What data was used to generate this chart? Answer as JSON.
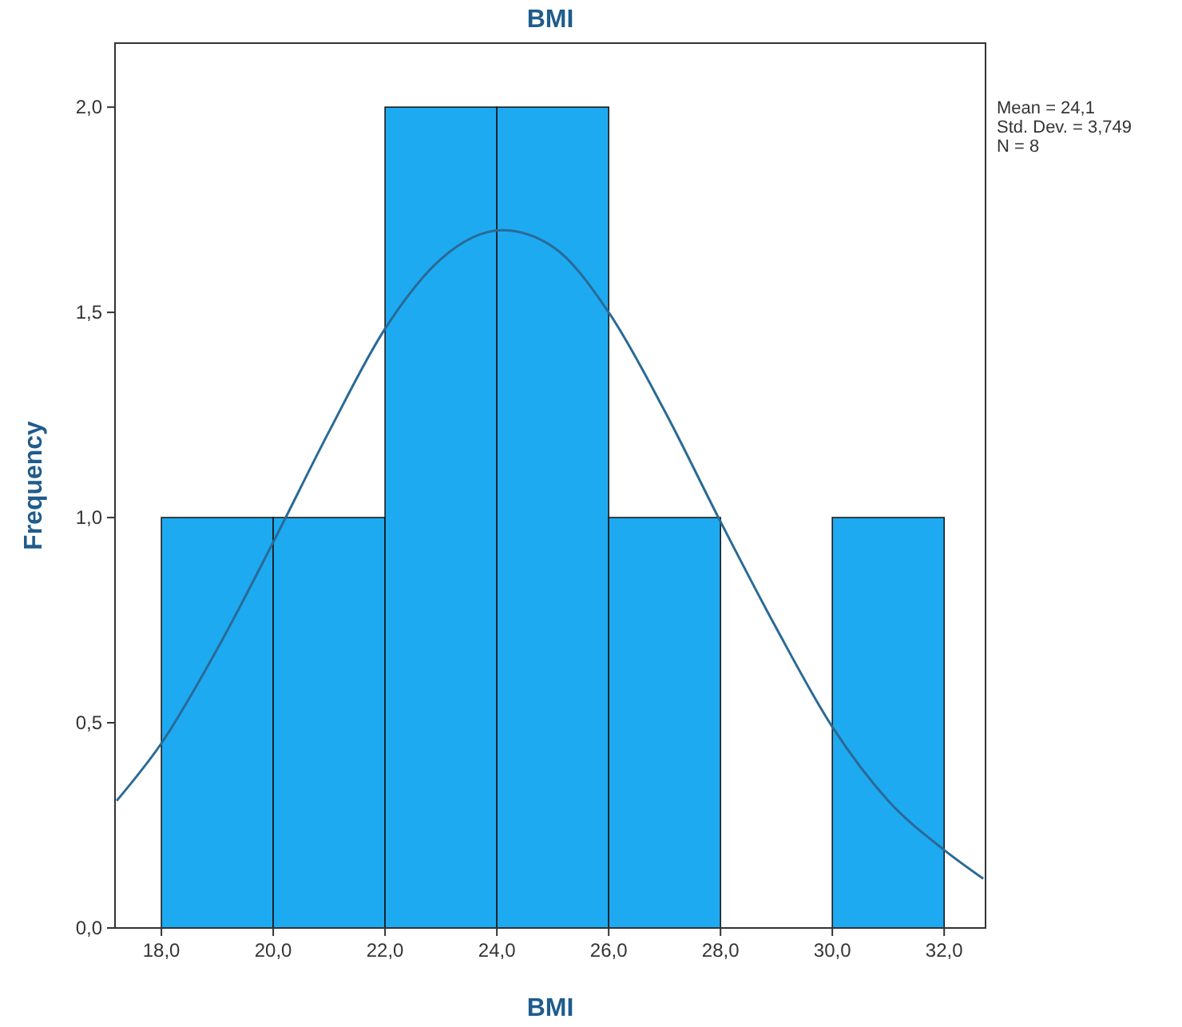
{
  "chart_data": {
    "type": "histogram",
    "title": "BMI",
    "xlabel": "BMI",
    "ylabel": "Frequency",
    "bins": [
      18,
      20,
      22,
      24,
      26,
      28,
      30,
      32
    ],
    "series": [
      {
        "type": "histogram",
        "color": "#1eaaf1",
        "values": [
          1,
          1,
          2,
          2,
          1,
          0,
          1
        ]
      },
      {
        "type": "line",
        "color": "#2a6a96",
        "x": [
          17.2,
          18,
          19,
          20,
          21,
          22,
          23,
          24.1,
          25,
          26,
          27,
          28,
          29,
          30,
          31,
          32,
          32.7
        ],
        "values": [
          0.31,
          0.45,
          0.68,
          0.94,
          1.21,
          1.46,
          1.63,
          1.7,
          1.66,
          1.5,
          1.26,
          0.99,
          0.73,
          0.49,
          0.31,
          0.19,
          0.12
        ]
      }
    ],
    "xlim": [
      17.17,
      32.74
    ],
    "ylim": [
      0,
      2.156
    ],
    "xticks": [
      {
        "value": 18,
        "label": "18,0"
      },
      {
        "value": 20,
        "label": "20,0"
      },
      {
        "value": 22,
        "label": "22,0"
      },
      {
        "value": 24,
        "label": "24,0"
      },
      {
        "value": 26,
        "label": "26,0"
      },
      {
        "value": 28,
        "label": "28,0"
      },
      {
        "value": 30,
        "label": "30,0"
      },
      {
        "value": 32,
        "label": "32,0"
      }
    ],
    "yticks": [
      {
        "value": 0,
        "label": "0,0"
      },
      {
        "value": 0.5,
        "label": "0,5"
      },
      {
        "value": 1,
        "label": "1,0"
      },
      {
        "value": 1.5,
        "label": "1,5"
      },
      {
        "value": 2,
        "label": "2,0"
      }
    ],
    "annotations": [
      "Mean = 24,1",
      "Std. Dev. = 3,749",
      "N = 8"
    ],
    "grid": false
  }
}
